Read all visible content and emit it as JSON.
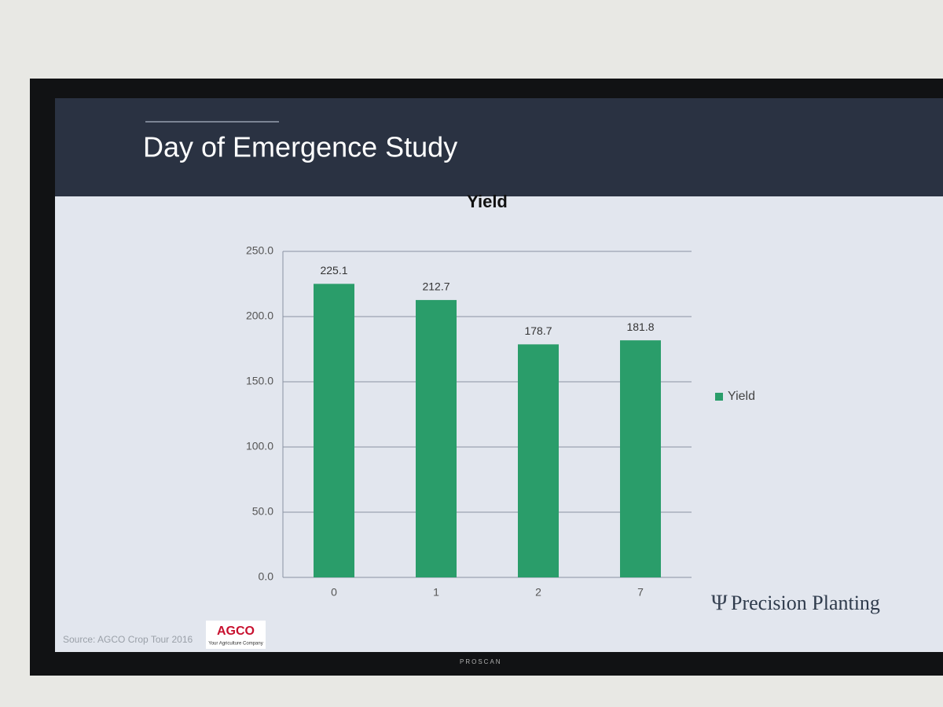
{
  "slide": {
    "title": "Day of Emergence Study",
    "source": "Source: AGCO Crop Tour 2016",
    "logo_agco": "AGCO",
    "logo_agco_tagline": "Your Agriculture Company",
    "logo_pp": "Precision Planting",
    "monitor_brand": "PROSCAN"
  },
  "chart_data": {
    "type": "bar",
    "title": "Yield",
    "categories": [
      "0",
      "1",
      "2",
      "7"
    ],
    "series": [
      {
        "name": "Yield",
        "color": "#2a9d6a",
        "values": [
          225.1,
          212.7,
          178.7,
          181.8
        ]
      }
    ],
    "ylim": [
      0,
      250
    ],
    "yticks": [
      {
        "value": 0,
        "label": "0.0"
      },
      {
        "value": 50,
        "label": "50.0"
      },
      {
        "value": 100,
        "label": "100.0"
      },
      {
        "value": 150,
        "label": "150.0"
      },
      {
        "value": 200,
        "label": "200.0"
      },
      {
        "value": 250,
        "label": "250.0"
      }
    ],
    "grid": true,
    "legend": "right"
  }
}
